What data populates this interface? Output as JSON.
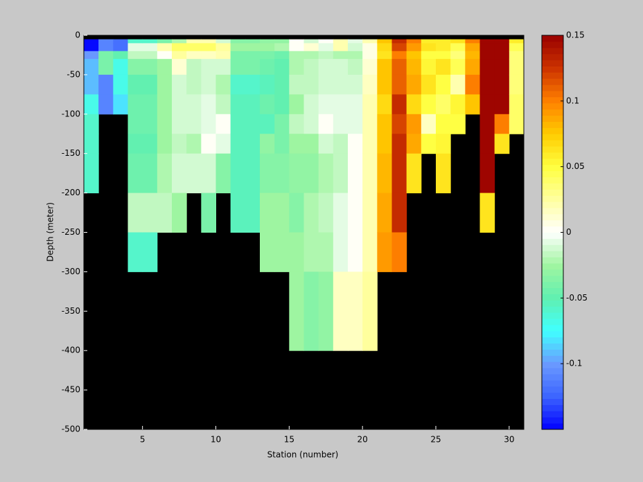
{
  "chart_data": {
    "type": "heatmap",
    "xlabel": "Station (number)",
    "ylabel": "Depth (meter)",
    "x": [
      1,
      2,
      3,
      4,
      5,
      6,
      7,
      8,
      9,
      10,
      11,
      12,
      13,
      14,
      15,
      16,
      17,
      18,
      19,
      20,
      21,
      22,
      23,
      24,
      25,
      26,
      27,
      28,
      29,
      30,
      31
    ],
    "y": [
      -5,
      -10,
      -20,
      -30,
      -50,
      -75,
      -100,
      -125,
      -150,
      -200,
      -250,
      -300,
      -400
    ],
    "values": [
      [
        -0.15,
        -0.15,
        -0.1,
        -0.09,
        -0.09,
        -0.07,
        -0.06,
        -0.06,
        -0.06,
        null,
        null,
        null
      ],
      [
        -0.11,
        -0.11,
        -0.04,
        -0.04,
        -0.11,
        -0.11,
        null,
        null,
        null,
        null,
        null,
        null
      ],
      [
        -0.12,
        -0.12,
        -0.05,
        -0.07,
        -0.07,
        -0.08,
        null,
        null,
        null,
        null,
        null,
        null
      ],
      [
        -0.06,
        -0.005,
        -0.015,
        -0.035,
        -0.05,
        -0.045,
        -0.045,
        -0.05,
        -0.045,
        -0.015,
        -0.06,
        null
      ],
      [
        -0.06,
        -0.005,
        -0.015,
        -0.035,
        -0.05,
        -0.045,
        -0.045,
        -0.05,
        -0.045,
        -0.015,
        -0.06,
        null
      ],
      [
        -0.04,
        0.02,
        0,
        -0.025,
        -0.025,
        -0.025,
        -0.025,
        -0.025,
        -0.02,
        -0.015,
        null,
        null
      ],
      [
        -0.02,
        0.04,
        0.025,
        0.01,
        -0.01,
        -0.01,
        -0.01,
        -0.015,
        -0.01,
        -0.025,
        null,
        null
      ],
      [
        0.02,
        0.04,
        0.015,
        -0.015,
        -0.015,
        -0.01,
        -0.01,
        -0.02,
        -0.01,
        null,
        null,
        null
      ],
      [
        0.02,
        0.04,
        0.015,
        -0.01,
        -0.01,
        -0.005,
        -0.005,
        0,
        -0.01,
        -0.04,
        null,
        null
      ],
      [
        -0.01,
        0.025,
        0.02,
        -0.01,
        -0.02,
        -0.015,
        0,
        -0.005,
        -0.035,
        null,
        null,
        null
      ],
      [
        -0.035,
        -0.025,
        -0.04,
        -0.04,
        -0.06,
        -0.055,
        -0.055,
        -0.055,
        -0.055,
        -0.055,
        null,
        null
      ],
      [
        -0.035,
        -0.025,
        -0.04,
        -0.04,
        -0.06,
        -0.055,
        -0.055,
        -0.055,
        -0.055,
        -0.055,
        null,
        null
      ],
      [
        -0.03,
        -0.025,
        -0.04,
        -0.045,
        -0.055,
        -0.045,
        -0.055,
        -0.03,
        -0.035,
        -0.025,
        -0.025,
        null
      ],
      [
        -0.03,
        -0.02,
        -0.045,
        -0.05,
        -0.05,
        -0.05,
        -0.04,
        -0.04,
        -0.035,
        -0.025,
        -0.025,
        null
      ],
      [
        0,
        0,
        -0.02,
        -0.02,
        -0.015,
        -0.025,
        -0.015,
        -0.025,
        -0.03,
        -0.035,
        -0.025,
        -0.025
      ],
      [
        -0.01,
        0.01,
        -0.02,
        -0.015,
        -0.015,
        -0.01,
        -0.01,
        -0.025,
        -0.03,
        -0.02,
        -0.02,
        -0.035
      ],
      [
        0,
        -0.005,
        -0.015,
        -0.01,
        -0.01,
        -0.005,
        0,
        -0.01,
        -0.02,
        -0.015,
        -0.02,
        -0.03
      ],
      [
        0.02,
        0.02,
        -0.02,
        -0.01,
        -0.01,
        -0.005,
        -0.005,
        -0.015,
        -0.015,
        -0.005,
        -0.005,
        0.015
      ],
      [
        -0.005,
        -0.01,
        -0.02,
        -0.015,
        -0.01,
        -0.005,
        -0.005,
        0,
        0,
        0,
        0,
        0.015
      ],
      [
        0.02,
        0.005,
        0.005,
        0.01,
        0.015,
        0.02,
        0.02,
        0.02,
        0.02,
        0.02,
        0.02,
        0.025
      ],
      [
        0.075,
        0.07,
        0.065,
        0.075,
        0.075,
        0.07,
        0.075,
        0.075,
        0.08,
        0.085,
        0.09,
        null
      ],
      [
        0.13,
        0.12,
        0.1,
        0.11,
        0.11,
        0.13,
        0.12,
        0.13,
        0.13,
        0.13,
        0.1,
        null
      ],
      [
        0.1,
        0.09,
        0.075,
        0.08,
        0.085,
        0.07,
        0.09,
        0.085,
        0.065,
        null,
        null,
        null
      ],
      [
        0.06,
        0.065,
        0.05,
        0.055,
        0.065,
        0.05,
        0.015,
        0.05,
        null,
        null,
        null,
        null
      ],
      [
        0.06,
        0.06,
        0.05,
        0.065,
        0.05,
        0.04,
        0.05,
        0.055,
        0.065,
        null,
        null,
        null
      ],
      [
        0.065,
        0.045,
        0.035,
        0.045,
        0.02,
        0.055,
        0.05,
        null,
        null,
        null,
        null,
        null
      ],
      [
        0.1,
        0.085,
        0.08,
        0.085,
        0.1,
        0.075,
        null,
        null,
        null,
        null,
        null,
        null
      ],
      [
        0.15,
        0.15,
        0.15,
        0.15,
        0.15,
        0.15,
        0.15,
        0.15,
        0.15,
        0.065,
        null,
        null
      ],
      [
        0.15,
        0.15,
        0.15,
        0.15,
        0.15,
        0.15,
        0.1,
        0.065,
        null,
        null,
        null,
        null
      ],
      [
        0.06,
        0.045,
        0.035,
        0.035,
        0.035,
        0.04,
        0.04,
        null,
        null,
        null,
        null,
        null
      ]
    ],
    "xlim": [
      1,
      31
    ],
    "xticks": [
      5,
      10,
      15,
      20,
      25,
      30
    ],
    "ylim": [
      -500,
      0
    ],
    "yticks": [
      -500,
      -450,
      -400,
      -350,
      -300,
      -250,
      -200,
      -150,
      -100,
      -50,
      0
    ],
    "clim": [
      -0.15,
      0.15
    ],
    "cticks": [
      -0.1,
      -0.05,
      0,
      0.05,
      0.1,
      0.15
    ],
    "background": "#000000",
    "colormap": [
      "#0000ff",
      "#3c64ff",
      "#6a9aff",
      "#40ffff",
      "#60f0b0",
      "#a0f5a0",
      "#ffffff",
      "#ffffa0",
      "#ffff40",
      "#ffcc00",
      "#ff8000",
      "#cc3300",
      "#990000"
    ]
  }
}
